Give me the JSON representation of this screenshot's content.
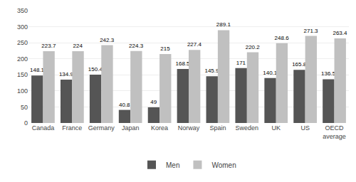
{
  "chart_data": {
    "type": "bar",
    "categories": [
      "Canada",
      "France",
      "Germany",
      "Japan",
      "Korea",
      "Norway",
      "Spain",
      "Sweden",
      "UK",
      "US",
      "OECD\naverage"
    ],
    "series": [
      {
        "name": "Men",
        "color": "#555555",
        "values": [
          148.1,
          134.9,
          150.4,
          40.8,
          49,
          168.5,
          145.9,
          171,
          140.1,
          165.8,
          136.5
        ]
      },
      {
        "name": "Women",
        "color": "#c0c0c0",
        "values": [
          223.7,
          224,
          242.3,
          224.3,
          215,
          227.4,
          289.1,
          220.2,
          248.6,
          271.3,
          263.4
        ]
      }
    ],
    "ylim": [
      0,
      350
    ],
    "yticks": [
      0,
      50,
      100,
      150,
      200,
      250,
      300,
      350
    ],
    "grid": true,
    "legend": "bottom",
    "data_labels": true
  }
}
